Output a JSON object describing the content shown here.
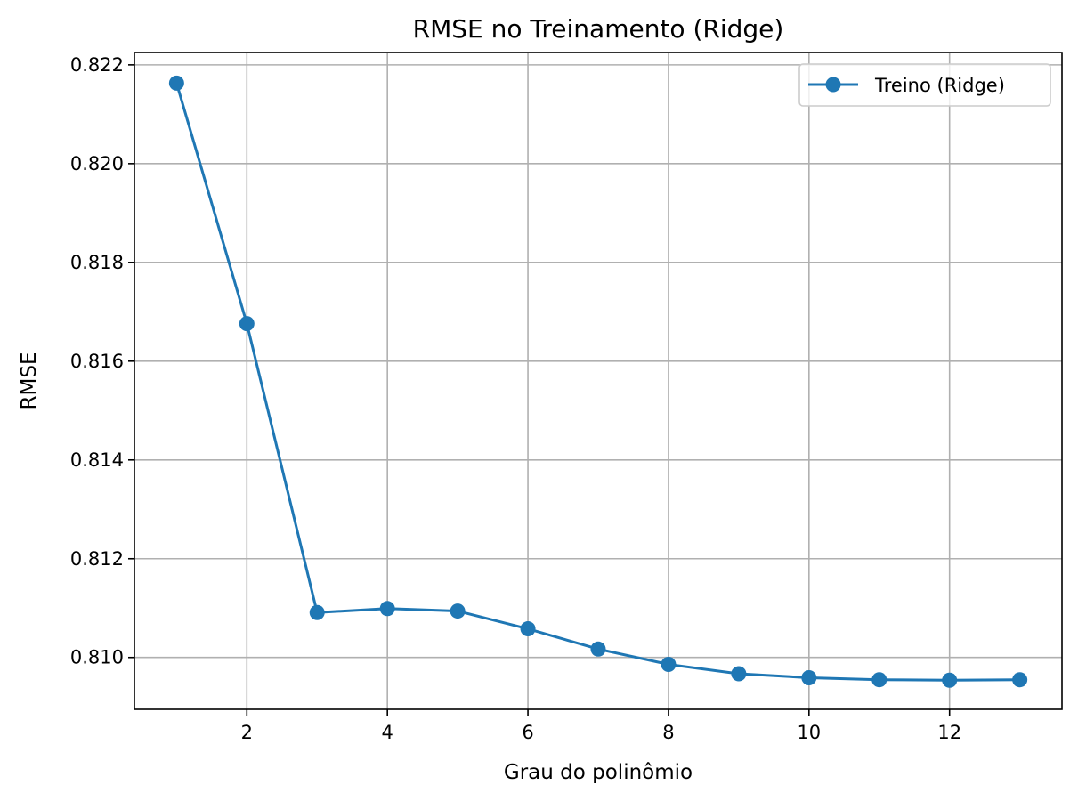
{
  "chart_data": {
    "type": "line",
    "title": "RMSE no Treinamento (Ridge)",
    "xlabel": "Grau do polinômio",
    "ylabel": "RMSE",
    "xlim": [
      0.4,
      13.6
    ],
    "ylim": [
      0.80895,
      0.82225
    ],
    "xticks": [
      2,
      4,
      6,
      8,
      10,
      12
    ],
    "xtick_labels": [
      "2",
      "4",
      "6",
      "8",
      "10",
      "12"
    ],
    "yticks": [
      0.81,
      0.812,
      0.814,
      0.816,
      0.818,
      0.82,
      0.822
    ],
    "ytick_labels": [
      "0.810",
      "0.812",
      "0.814",
      "0.816",
      "0.818",
      "0.820",
      "0.822"
    ],
    "grid": true,
    "legend_position": "top-right",
    "series": [
      {
        "name": "Treino (Ridge)",
        "color": "#1f77b4",
        "marker": "circle",
        "x": [
          1,
          2,
          3,
          4,
          5,
          6,
          7,
          8,
          9,
          10,
          11,
          12,
          13
        ],
        "y": [
          0.82163,
          0.81676,
          0.81091,
          0.81099,
          0.81094,
          0.81058,
          0.81017,
          0.80986,
          0.80967,
          0.80959,
          0.80955,
          0.80954,
          0.80955
        ]
      }
    ]
  }
}
